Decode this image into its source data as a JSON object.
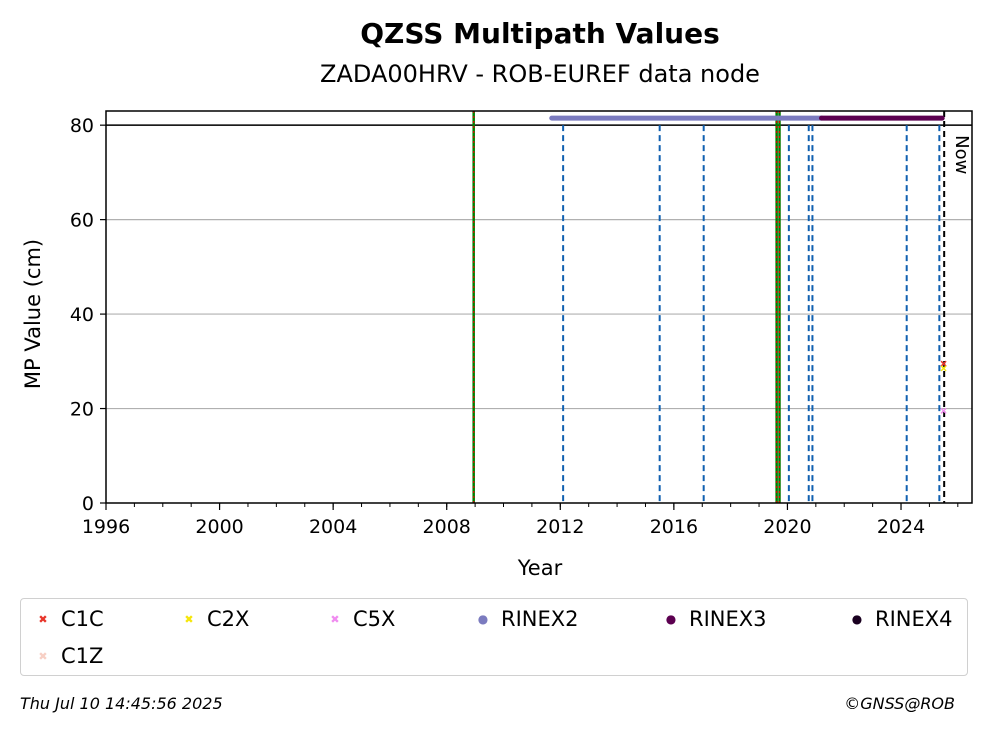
{
  "chart_data": {
    "type": "scatter",
    "title": "QZSS Multipath Values",
    "subtitle": "ZADA00HRV - ROB-EUREF data node",
    "xlabel": "Year",
    "ylabel": "MP Value (cm)",
    "xlim": [
      1996,
      2026.5
    ],
    "ylim": [
      0,
      83
    ],
    "x_ticks": [
      1996,
      2000,
      2004,
      2008,
      2012,
      2016,
      2020,
      2024
    ],
    "y_ticks": [
      0,
      20,
      40,
      60,
      80
    ],
    "grid": "horizontal",
    "now_label": "Now",
    "now_x": 2025.52,
    "reference_line_y": 80,
    "vlines": [
      {
        "x": 2008.95,
        "style": "green-red-dotted"
      },
      {
        "x": 2012.1,
        "style": "blue-dashed"
      },
      {
        "x": 2015.5,
        "style": "blue-dashed"
      },
      {
        "x": 2017.05,
        "style": "blue-dashed"
      },
      {
        "x": 2019.62,
        "style": "green-red-dotted"
      },
      {
        "x": 2019.72,
        "style": "green-red-dotted"
      },
      {
        "x": 2020.05,
        "style": "blue-dashed"
      },
      {
        "x": 2020.75,
        "style": "blue-dashed"
      },
      {
        "x": 2020.88,
        "style": "blue-dashed"
      },
      {
        "x": 2024.2,
        "style": "blue-dashed"
      },
      {
        "x": 2025.35,
        "style": "blue-dashed"
      },
      {
        "x": 2025.52,
        "style": "black-dashed"
      }
    ],
    "rinex_bars": [
      {
        "name": "RINEX2",
        "color": "#7b7bbf",
        "x_start": 2011.7,
        "x_end": 2021.2,
        "y": 81.5
      },
      {
        "name": "RINEX3",
        "color": "#5c0050",
        "x_start": 2021.2,
        "x_end": 2025.45,
        "y": 81.5
      }
    ],
    "series": [
      {
        "name": "C1C",
        "color": "#e8352a",
        "marker": "x",
        "points": [
          [
            2025.5,
            29.5
          ]
        ]
      },
      {
        "name": "C2X",
        "color": "#f5e60a",
        "marker": "x",
        "points": [
          [
            2025.5,
            28.5
          ]
        ]
      },
      {
        "name": "C5X",
        "color": "#f08cf0",
        "marker": "x",
        "points": [
          [
            2025.5,
            19.5
          ]
        ]
      },
      {
        "name": "RINEX2",
        "color": "#7b7bbf",
        "marker": "o",
        "points": []
      },
      {
        "name": "RINEX3",
        "color": "#5c0050",
        "marker": "o",
        "points": []
      },
      {
        "name": "RINEX4",
        "color": "#1a0020",
        "marker": "o",
        "points": []
      },
      {
        "name": "C1Z",
        "color": "#f7cfc4",
        "marker": "x",
        "points": []
      }
    ]
  },
  "legend": [
    {
      "label": "C1C",
      "color": "#e8352a",
      "glyph": "✖"
    },
    {
      "label": "C2X",
      "color": "#f5e60a",
      "glyph": "✖"
    },
    {
      "label": "C5X",
      "color": "#f08cf0",
      "glyph": "✖"
    },
    {
      "label": "RINEX2",
      "color": "#7b7bbf",
      "glyph": "●"
    },
    {
      "label": "RINEX3",
      "color": "#5c0050",
      "glyph": "●"
    },
    {
      "label": "RINEX4",
      "color": "#1a0020",
      "glyph": "●"
    },
    {
      "label": "C1Z",
      "color": "#f7cfc4",
      "glyph": "✖"
    }
  ],
  "footer": {
    "timestamp": "Thu Jul 10 14:45:56 2025",
    "copyright": "©GNSS@ROB"
  }
}
